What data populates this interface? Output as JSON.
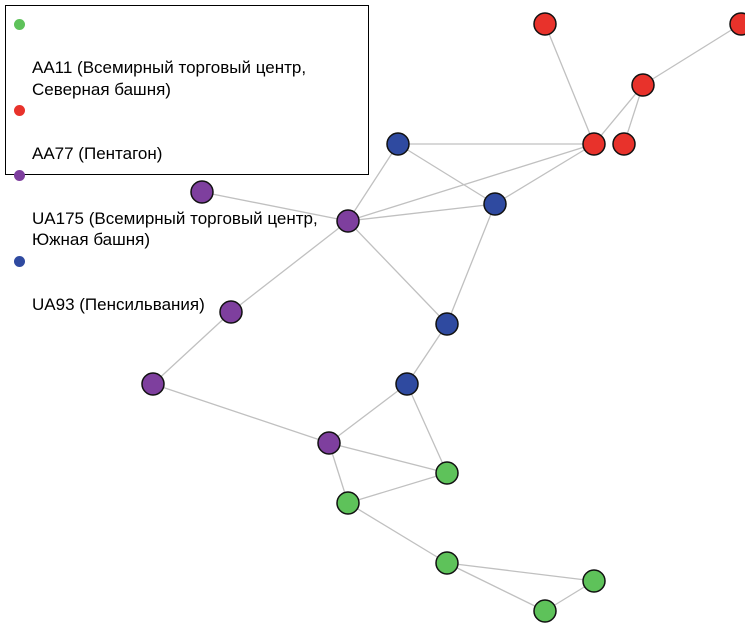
{
  "legend": {
    "items": [
      {
        "id": "AA11",
        "label": "AA11 (Всемирный торговый центр,\nСеверная башня)",
        "color": "#5ec25a"
      },
      {
        "id": "AA77",
        "label": "AA77 (Пентагон)",
        "color": "#e8322b"
      },
      {
        "id": "UA175",
        "label": "UA175 (Всемирный торговый центр,\nЮжная башня)",
        "color": "#7e3f9e"
      },
      {
        "id": "UA93",
        "label": "UA93 (Пенсильвания)",
        "color": "#2f4aa0"
      }
    ]
  },
  "graph": {
    "edge_color": "#c0c0c0",
    "node_outline": "#111111",
    "nodes": [
      {
        "id": "r1",
        "group": "AA77"
      },
      {
        "id": "r2",
        "group": "AA77"
      },
      {
        "id": "r3",
        "group": "AA77"
      },
      {
        "id": "r4",
        "group": "AA77"
      },
      {
        "id": "r5",
        "group": "AA77"
      },
      {
        "id": "b1",
        "group": "UA93"
      },
      {
        "id": "b2",
        "group": "UA93"
      },
      {
        "id": "b3",
        "group": "UA93"
      },
      {
        "id": "b4",
        "group": "UA93"
      },
      {
        "id": "p1",
        "group": "UA175"
      },
      {
        "id": "p2",
        "group": "UA175"
      },
      {
        "id": "p3",
        "group": "UA175"
      },
      {
        "id": "p4",
        "group": "UA175"
      },
      {
        "id": "p5",
        "group": "UA175"
      },
      {
        "id": "g1",
        "group": "AA11"
      },
      {
        "id": "g2",
        "group": "AA11"
      },
      {
        "id": "g3",
        "group": "AA11"
      },
      {
        "id": "g4",
        "group": "AA11"
      },
      {
        "id": "g5",
        "group": "AA11"
      }
    ],
    "edges": [
      [
        "r1",
        "r4"
      ],
      [
        "r2",
        "r3"
      ],
      [
        "r3",
        "r4"
      ],
      [
        "r3",
        "r5"
      ],
      [
        "r4",
        "b1"
      ],
      [
        "r4",
        "b2"
      ],
      [
        "r4",
        "p2"
      ],
      [
        "b1",
        "p2"
      ],
      [
        "b1",
        "b2"
      ],
      [
        "p1",
        "p2"
      ],
      [
        "p2",
        "b2"
      ],
      [
        "p2",
        "p3"
      ],
      [
        "p2",
        "b3"
      ],
      [
        "b2",
        "b3"
      ],
      [
        "b3",
        "b4"
      ],
      [
        "p3",
        "p4"
      ],
      [
        "p4",
        "p5"
      ],
      [
        "b4",
        "p5"
      ],
      [
        "b4",
        "g1"
      ],
      [
        "p5",
        "g1"
      ],
      [
        "p5",
        "g2"
      ],
      [
        "g1",
        "g2"
      ],
      [
        "g2",
        "g3"
      ],
      [
        "g3",
        "g4"
      ],
      [
        "g3",
        "g5"
      ],
      [
        "g4",
        "g5"
      ]
    ]
  }
}
